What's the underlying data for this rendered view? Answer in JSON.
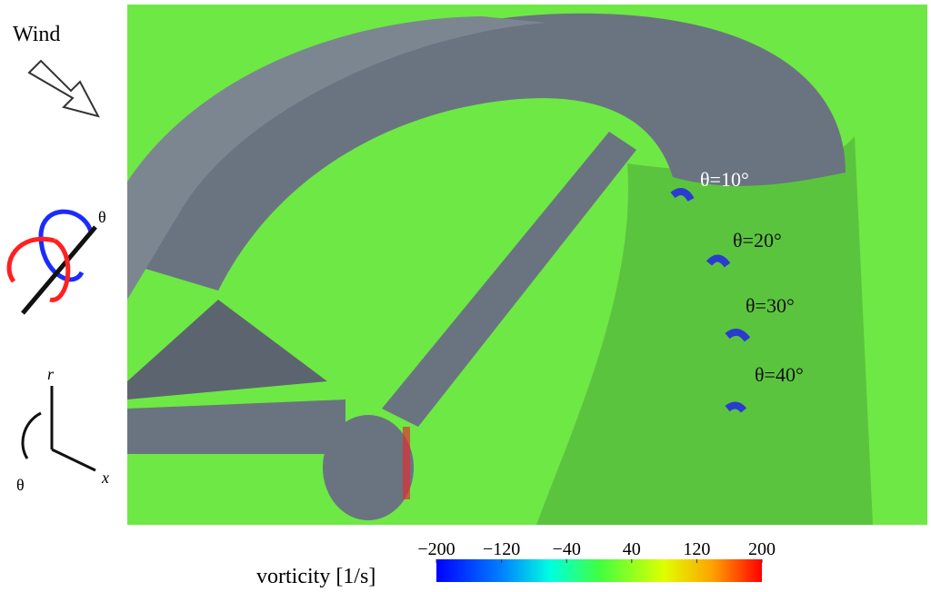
{
  "legend": {
    "wind": "Wind",
    "rotation_symbol": "θ",
    "axes": {
      "r": "r",
      "theta": "θ",
      "x": "x"
    }
  },
  "annotations": [
    "θ=10°",
    "θ=20°",
    "θ=30°",
    "θ=40°"
  ],
  "colorbar": {
    "label": "vorticity [1/s]",
    "lim": [
      -200,
      200
    ],
    "ticks": [
      {
        "value": -200,
        "label": "−200"
      },
      {
        "value": -120,
        "label": "−120"
      },
      {
        "value": -40,
        "label": "−40"
      },
      40,
      120,
      200
    ]
  }
}
